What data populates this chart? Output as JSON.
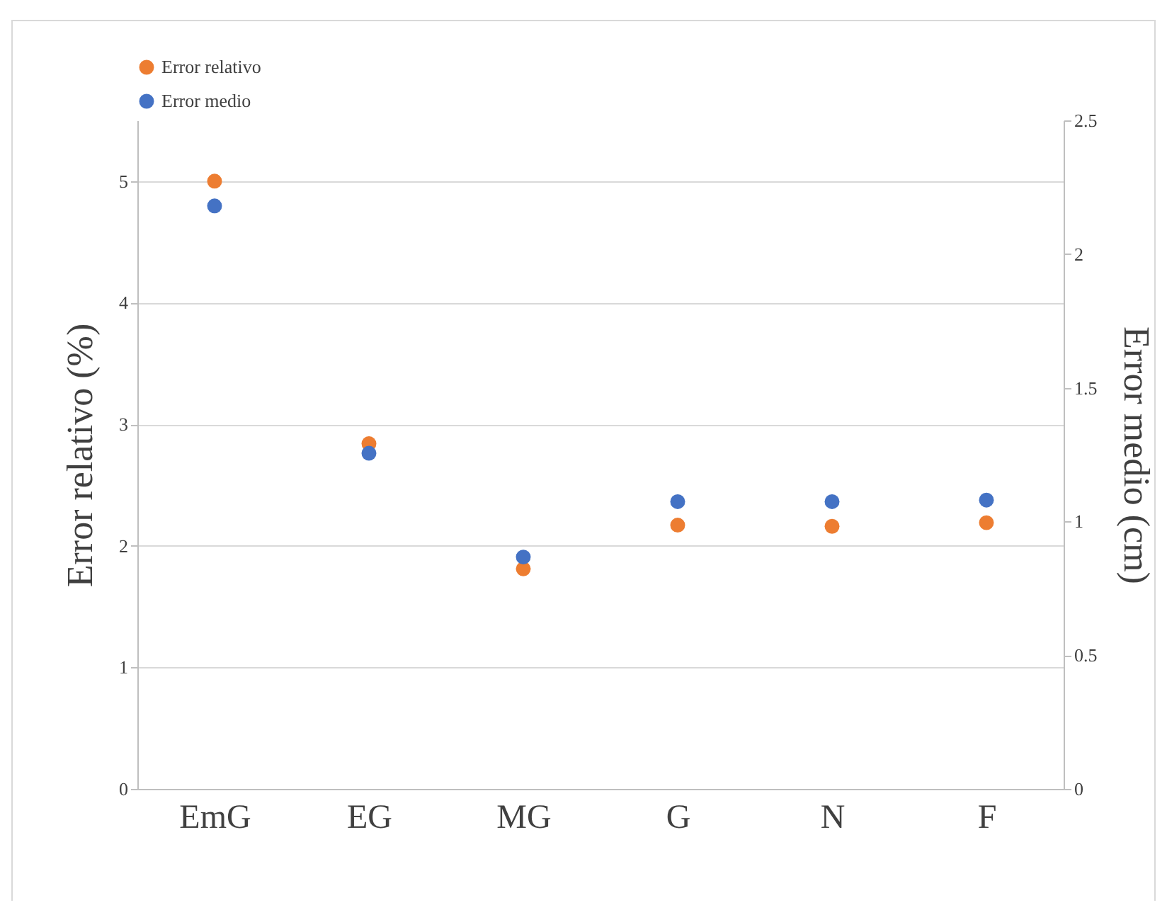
{
  "chart_data": {
    "type": "scatter",
    "ylabel": "Error relativo (%)",
    "y2label": "Error medio (cm)",
    "categories": [
      "EmG",
      "EG",
      "MG",
      "G",
      "N",
      "F"
    ],
    "series": [
      {
        "name": "Error relativo",
        "color": "#ed7d31",
        "values": [
          5.0,
          2.84,
          1.81,
          2.17,
          2.16,
          2.19
        ]
      },
      {
        "name": "Error medio",
        "color": "#4472c4",
        "axis": "y2",
        "values": [
          2.18,
          1.255,
          0.867,
          1.074,
          1.074,
          1.08
        ]
      }
    ],
    "ylim": [
      0,
      5.5
    ],
    "yticks": [
      0,
      1,
      2,
      3,
      4,
      5
    ],
    "y2lim": [
      0,
      2.5
    ],
    "y2ticks": [
      0,
      0.5,
      1,
      1.5,
      2,
      2.5
    ],
    "grid": "y",
    "legend": "top",
    "marker": "circle"
  }
}
